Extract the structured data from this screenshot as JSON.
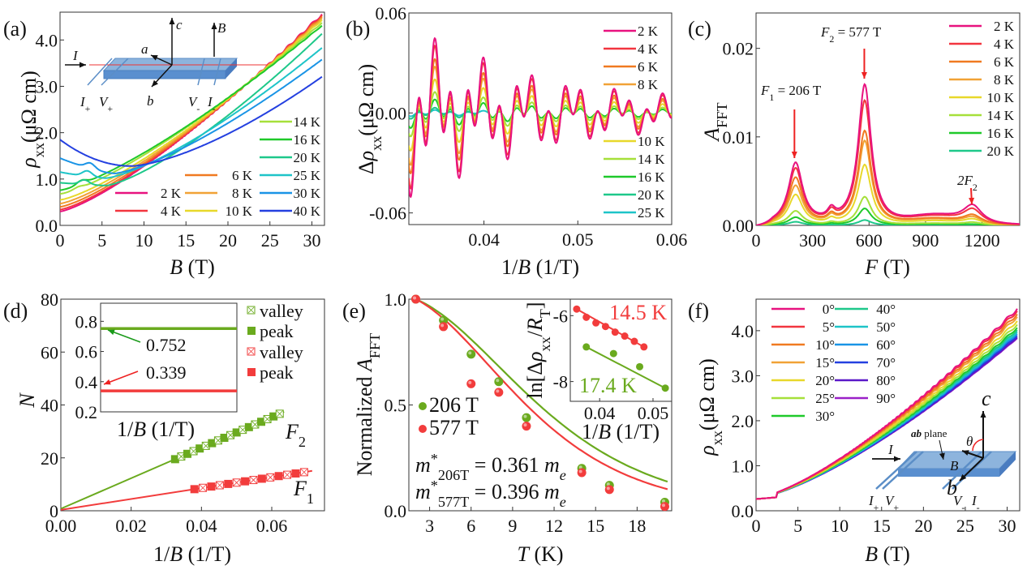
{
  "figure": {
    "panel_labels": [
      "(a)",
      "(b)",
      "(c)",
      "(d)",
      "(e)",
      "(f)"
    ]
  },
  "chart_data": [
    {
      "id": "a",
      "type": "line",
      "title": "",
      "xlabel": "B (T)",
      "ylabel": "ρxx (μΩ cm)",
      "xlim": [
        0,
        31.5
      ],
      "ylim": [
        0,
        4.6
      ],
      "xticks": [
        0,
        5,
        10,
        15,
        20,
        25,
        30
      ],
      "yticks": [
        0.0,
        1.0,
        2.0,
        3.0,
        4.0
      ],
      "ytick_labels": [
        "0.0",
        "1.0",
        "2.0",
        "3.0",
        "4.0"
      ],
      "legend": "bottom-right",
      "series": [
        {
          "name": "2 K",
          "color": "#e8127f",
          "rho0": 0.3,
          "rho31": 4.52,
          "hump": 0
        },
        {
          "name": "4 K",
          "color": "#f2353f",
          "rho0": 0.34,
          "rho31": 4.5,
          "hump": 0
        },
        {
          "name": "6 K",
          "color": "#f07a21",
          "rho0": 0.4,
          "rho31": 4.47,
          "hump": 0
        },
        {
          "name": "8 K",
          "color": "#f1a236",
          "rho0": 0.47,
          "rho31": 4.44,
          "hump": 0
        },
        {
          "name": "10 K",
          "color": "#e8d82a",
          "rho0": 0.55,
          "rho31": 4.4,
          "hump": 0
        },
        {
          "name": "14 K",
          "color": "#a6e03a",
          "rho0": 0.68,
          "rho31": 4.34,
          "hump": 0.04
        },
        {
          "name": "16 K",
          "color": "#1fc92a",
          "rho0": 0.76,
          "rho31": 4.28,
          "hump": 0.08
        },
        {
          "name": "20 K",
          "color": "#1ec88a",
          "rho0": 0.92,
          "rho31": 4.1,
          "hump": 0.1
        },
        {
          "name": "25 K",
          "color": "#1ec4c8",
          "rho0": 1.15,
          "rho31": 3.8,
          "hump": 0.12
        },
        {
          "name": "30 K",
          "color": "#1a94e6",
          "rho0": 1.45,
          "rho31": 3.55,
          "hump": 0.12
        },
        {
          "name": "40 K",
          "color": "#2440e0",
          "rho0": 1.85,
          "rho31": 3.18,
          "hump": 0
        }
      ],
      "inset_schematic": {
        "labels": {
          "current": "I",
          "axis_c": "c",
          "axis_a": "a",
          "axis_b": "b",
          "field": "B",
          "i_plus": "I+",
          "v_plus": "V+",
          "v_minus": "V-",
          "i_minus": "I-"
        }
      }
    },
    {
      "id": "b",
      "type": "line",
      "xlabel": "1/B (1/T)",
      "ylabel": "Δρxx (μΩ cm)",
      "xlim": [
        0.032,
        0.06
      ],
      "ylim": [
        -0.067,
        0.06
      ],
      "xticks": [
        0.04,
        0.05,
        0.06
      ],
      "yticks": [
        -0.06,
        0.0,
        0.06
      ],
      "ytick_labels": [
        "-0.06",
        "0.00",
        "0.06"
      ],
      "legend": "right",
      "series": [
        {
          "name": "2 K",
          "color": "#e8127f",
          "amp": 1.0,
          "xmax": 0.06
        },
        {
          "name": "4 K",
          "color": "#f2353f",
          "amp": 0.9,
          "xmax": 0.06
        },
        {
          "name": "6 K",
          "color": "#f07a21",
          "amp": 0.72,
          "xmax": 0.06
        },
        {
          "name": "8 K",
          "color": "#f1a236",
          "amp": 0.62,
          "xmax": 0.06
        },
        {
          "name": "10 K",
          "color": "#e8d82a",
          "amp": 0.45,
          "xmax": 0.06
        },
        {
          "name": "14 K",
          "color": "#a6e03a",
          "amp": 0.28,
          "xmax": 0.06
        },
        {
          "name": "16 K",
          "color": "#1fc92a",
          "amp": 0.18,
          "xmax": 0.06
        },
        {
          "name": "20 K",
          "color": "#1ec88a",
          "amp": 0.07,
          "xmax": 0.039
        },
        {
          "name": "25 K",
          "color": "#1ec4c8",
          "amp": 0.04,
          "xmax": 0.0405
        }
      ],
      "frequencies_T": [
        206,
        577
      ],
      "peak_amplitude": 0.05
    },
    {
      "id": "c",
      "type": "line",
      "xlabel": "F (T)",
      "ylabel": "AFFT",
      "xlim": [
        0,
        1400
      ],
      "ylim": [
        0,
        0.024
      ],
      "xticks": [
        0,
        300,
        600,
        900,
        1200
      ],
      "yticks": [
        0.0,
        0.01,
        0.02
      ],
      "ytick_labels": [
        "0.00",
        "0.01",
        "0.02"
      ],
      "legend": "top-right",
      "annotations": [
        {
          "text_main": "F",
          "text_sub": "1",
          "text_rest": " = 206 T",
          "x": 206
        },
        {
          "text_main": "F",
          "text_sub": "2",
          "text_rest": " = 577 T",
          "x": 577
        },
        {
          "text_main": "2F",
          "text_sub": "2",
          "text_rest": "",
          "x": 1150
        }
      ],
      "series": [
        {
          "name": "2 K",
          "color": "#e8127f",
          "p1": 0.0069,
          "p2": 0.0158,
          "p3": 0.002
        },
        {
          "name": "4 K",
          "color": "#f2353f",
          "p1": 0.0063,
          "p2": 0.014,
          "p3": 0.0016
        },
        {
          "name": "6 K",
          "color": "#f07a21",
          "p1": 0.0053,
          "p2": 0.0106,
          "p3": 0.001
        },
        {
          "name": "8 K",
          "color": "#f1a236",
          "p1": 0.0044,
          "p2": 0.0095,
          "p3": 0.0008
        },
        {
          "name": "10 K",
          "color": "#e8d82a",
          "p1": 0.0034,
          "p2": 0.0068,
          "p3": 0.0006
        },
        {
          "name": "14 K",
          "color": "#a6e03a",
          "p1": 0.0016,
          "p2": 0.0032,
          "p3": 0.0003
        },
        {
          "name": "16 K",
          "color": "#1fc92a",
          "p1": 0.0009,
          "p2": 0.0019,
          "p3": 0.0001
        },
        {
          "name": "20 K",
          "color": "#1ec88a",
          "p1": 0.0004,
          "p2": 0.0006,
          "p3": 0.0
        }
      ]
    },
    {
      "id": "d",
      "type": "scatter",
      "xlabel": "1/B (1/T)",
      "ylabel": "N",
      "xlim": [
        0,
        0.075
      ],
      "ylim": [
        0,
        80
      ],
      "xticks": [
        0.0,
        0.02,
        0.04,
        0.06
      ],
      "xtick_labels": [
        "0.00",
        "0.02",
        "0.04",
        "0.06"
      ],
      "yticks": [
        0,
        20,
        40,
        60,
        80
      ],
      "legend": "top-right",
      "series": [
        {
          "name": "F2",
          "label_main": "F",
          "label_sub": "2",
          "color": "#6aaa1e",
          "slope": 577,
          "intercept": 0.752,
          "x_start": 0.0325,
          "x_end": 0.0635,
          "marker_step": 0.00175
        },
        {
          "name": "F1",
          "label_main": "F",
          "label_sub": "1",
          "color": "#f23c3c",
          "slope": 206,
          "intercept": 0.339,
          "x_start": 0.038,
          "x_end": 0.0715,
          "marker_step": 0.0024
        }
      ],
      "legend_entries": [
        {
          "name": "valley",
          "color": "#6aaa1e",
          "marker": "crossed-square-open"
        },
        {
          "name": "peak",
          "color": "#6aaa1e",
          "marker": "square-filled"
        },
        {
          "name": "valley",
          "color": "#f23c3c",
          "marker": "crossed-square-open"
        },
        {
          "name": "peak",
          "color": "#f23c3c",
          "marker": "square-filled"
        }
      ],
      "inset": {
        "xlabel": "1/B (1/T)",
        "ylim": [
          0.2,
          0.92
        ],
        "yticks": [
          0.2,
          0.4,
          0.6,
          0.8
        ],
        "values": [
          {
            "value": 0.752,
            "label": "0.752",
            "color": "#6aaa1e"
          },
          {
            "value": 0.339,
            "label": "0.339",
            "color": "#f23c3c"
          }
        ]
      }
    },
    {
      "id": "e",
      "type": "scatter",
      "xlabel": "T (K)",
      "ylabel": "Normalized AFFT",
      "xlim": [
        1.5,
        20.5
      ],
      "ylim": [
        0,
        1.0
      ],
      "xticks": [
        3,
        6,
        9,
        12,
        15,
        18
      ],
      "yticks": [
        0.0,
        0.5,
        1.0
      ],
      "ytick_labels": [
        "0.0",
        "0.5",
        "1.0"
      ],
      "legend": "center-left",
      "series": [
        {
          "name": "206 T",
          "color": "#6aaa1e",
          "x": [
            2,
            4,
            6,
            8,
            10,
            14,
            16,
            20
          ],
          "y": [
            1.0,
            0.9,
            0.74,
            0.61,
            0.44,
            0.2,
            0.12,
            0.04
          ],
          "mass": 0.361
        },
        {
          "name": "577 T",
          "color": "#f23c3c",
          "x": [
            2,
            4,
            6,
            8,
            10,
            14,
            16,
            20
          ],
          "y": [
            1.0,
            0.87,
            0.6,
            0.56,
            0.4,
            0.18,
            0.1,
            0.02
          ],
          "mass": 0.396
        }
      ],
      "annotations": [
        {
          "prefix": "m",
          "sup": "*",
          "sub": "206T",
          "rest": " = 0.361 ",
          "unit": "m",
          "unit_sub": "e"
        },
        {
          "prefix": "m",
          "sup": "*",
          "sub": "577T",
          "rest": " = 0.396 ",
          "unit": "m",
          "unit_sub": "e"
        }
      ],
      "inset": {
        "xlabel": "1/B (1/T)",
        "ylabel": "ln[Δρxx/RT]",
        "xlim": [
          0.0345,
          0.0535
        ],
        "ylim": [
          -8.6,
          -5.5
        ],
        "xticks": [
          0.04,
          0.05
        ],
        "yticks": [
          -8,
          -6
        ],
        "series": [
          {
            "name": "14.5 K",
            "color": "#f23c3c",
            "x": [
              0.0357,
              0.0375,
              0.0393,
              0.0411,
              0.0429,
              0.0447,
              0.0465,
              0.0483
            ],
            "y": [
              -5.8,
              -6.05,
              -6.22,
              -6.33,
              -6.5,
              -6.62,
              -6.78,
              -6.95
            ]
          },
          {
            "name": "17.4 K",
            "color": "#6aaa1e",
            "x": [
              0.0375,
              0.0426,
              0.0475,
              0.0523
            ],
            "y": [
              -6.95,
              -7.15,
              -7.55,
              -8.2
            ]
          }
        ]
      }
    },
    {
      "id": "f",
      "type": "line",
      "xlabel": "B (T)",
      "ylabel": "ρxx (μΩ cm)",
      "xlim": [
        0,
        31.5
      ],
      "ylim": [
        0,
        4.7
      ],
      "xticks": [
        0,
        5,
        10,
        15,
        20,
        25,
        30
      ],
      "yticks": [
        0.0,
        1.0,
        2.0,
        3.0,
        4.0
      ],
      "ytick_labels": [
        "0.0",
        "1.0",
        "2.0",
        "3.0",
        "4.0"
      ],
      "legend": "top-left",
      "series": [
        {
          "name": "0°",
          "color": "#e8127f",
          "rho31": 4.45
        },
        {
          "name": "5°",
          "color": "#f2353f",
          "rho31": 4.4
        },
        {
          "name": "10°",
          "color": "#f07a21",
          "rho31": 4.33
        },
        {
          "name": "15°",
          "color": "#f1a236",
          "rho31": 4.27
        },
        {
          "name": "20°",
          "color": "#e8d82a",
          "rho31": 4.18
        },
        {
          "name": "25°",
          "color": "#a6e03a",
          "rho31": 4.1
        },
        {
          "name": "30°",
          "color": "#1fc92a",
          "rho31": 4.03
        },
        {
          "name": "40°",
          "color": "#1ec88a",
          "rho31": 3.98
        },
        {
          "name": "50°",
          "color": "#1ec4c8",
          "rho31": 3.94
        },
        {
          "name": "60°",
          "color": "#1a94e6",
          "rho31": 3.9
        },
        {
          "name": "70°",
          "color": "#2440e0",
          "rho31": 3.86
        },
        {
          "name": "80°",
          "color": "#5a18c8",
          "rho31": 3.82
        },
        {
          "name": "90°",
          "color": "#9a20c8",
          "rho31": 3.8
        }
      ],
      "inset_schematic": {
        "labels": {
          "plane": "ab plane",
          "plane_bold": "ab",
          "plane_rest": " plane",
          "current": "I",
          "field": "B",
          "axis_c": "c",
          "axis_b": "b",
          "theta": "θ",
          "i_plus": "I+",
          "v_plus": "V+",
          "v_minus": "V-",
          "i_minus": "I-"
        }
      }
    }
  ]
}
